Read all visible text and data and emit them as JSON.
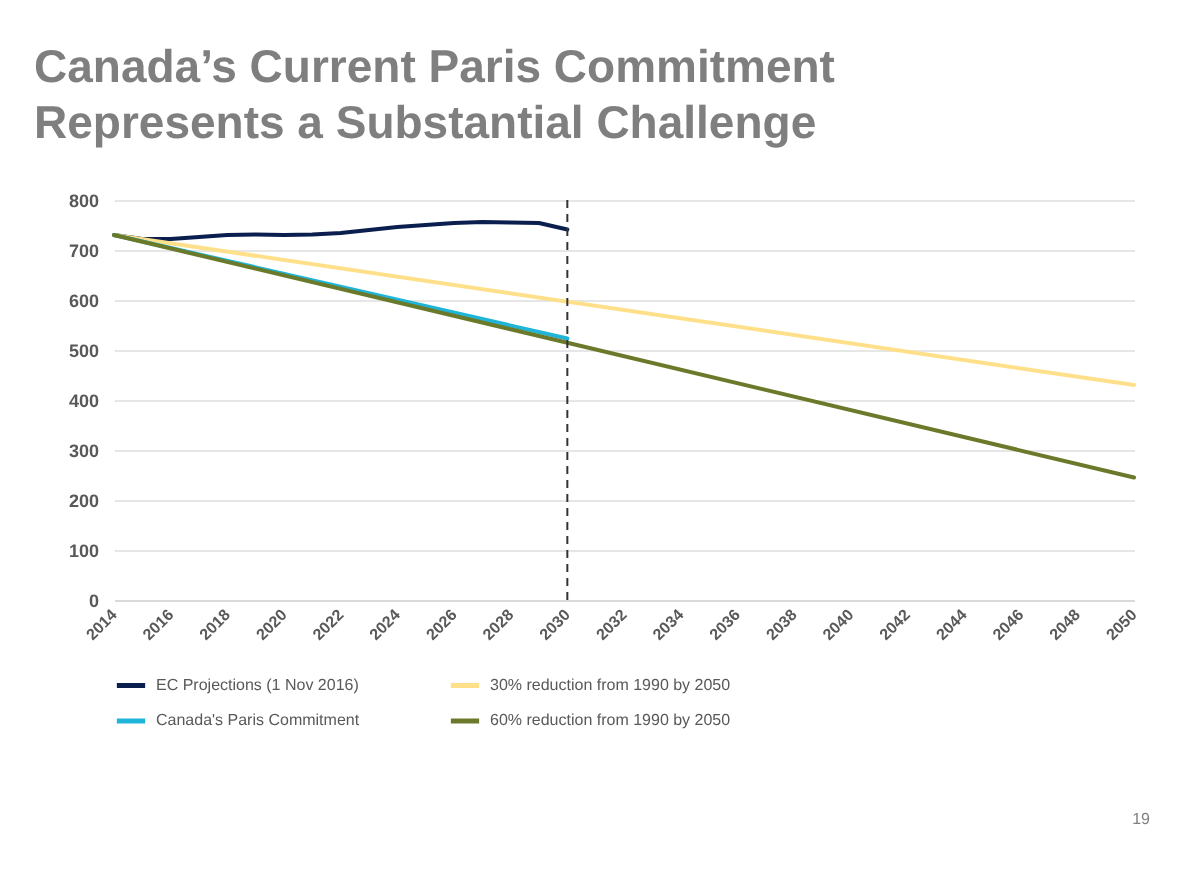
{
  "chart_data": {
    "type": "line",
    "title": "Canada’s Current Paris Commitment Represents a Substantial Challenge",
    "series": [
      {
        "name": "EC Projections (1 Nov 2016)",
        "color": "#0b1f4f",
        "x": [
          2014,
          2015,
          2016,
          2017,
          2018,
          2019,
          2020,
          2021,
          2022,
          2023,
          2024,
          2025,
          2026,
          2027,
          2028,
          2029,
          2030
        ],
        "values": [
          730,
          722,
          722,
          726,
          730,
          731,
          730,
          731,
          734,
          740,
          746,
          750,
          754,
          756,
          755,
          754,
          741
        ]
      },
      {
        "name": "30% reduction from 1990 by 2050",
        "color": "#ffe08a",
        "x": [
          2014,
          2050
        ],
        "values": [
          730,
          430
        ]
      },
      {
        "name": "Canada's Paris Commitment",
        "color": "#1fb5d8",
        "x": [
          2014,
          2030
        ],
        "values": [
          730,
          523
        ]
      },
      {
        "name": "60% reduction from 1990 by 2050",
        "color": "#6b7a2a",
        "x": [
          2014,
          2050
        ],
        "values": [
          730,
          245
        ]
      }
    ],
    "xlim": [
      2014,
      2050
    ],
    "xticks": [
      2014,
      2016,
      2018,
      2020,
      2022,
      2024,
      2026,
      2028,
      2030,
      2032,
      2034,
      2036,
      2038,
      2040,
      2042,
      2044,
      2046,
      2048,
      2050
    ],
    "ylim": [
      0,
      800
    ],
    "yticks": [
      0,
      100,
      200,
      300,
      400,
      500,
      600,
      700,
      800
    ],
    "grid": "y",
    "legend": "bottom",
    "marker": "none",
    "line_style": "solid",
    "ref_lines": [
      {
        "axis": "x",
        "value": 2030,
        "line_style": "dashed",
        "color": "#333333"
      }
    ],
    "annotations": [
      "19"
    ]
  }
}
